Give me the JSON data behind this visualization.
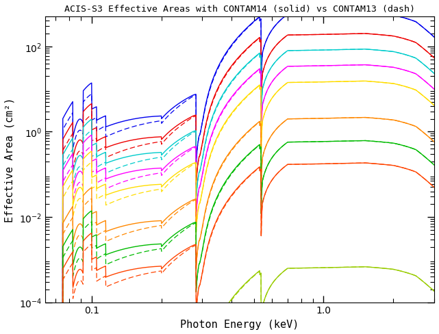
{
  "title": "ACIS-S3 Effective Areas with CONTAM14 (solid) vs CONTAM13 (dash)",
  "xlabel": "Photon Energy (keV)",
  "ylabel": "Effective Area (cm²)",
  "xlim": [
    0.063,
    3.0
  ],
  "ylim": [
    0.0001,
    500.0
  ],
  "colors": [
    "#0000ee",
    "#ee0000",
    "#00cccc",
    "#ff00ff",
    "#ffdd00",
    "#ff8800",
    "#00bb00",
    "#ff4400",
    "#99cc00"
  ],
  "scales": [
    200,
    65,
    28,
    12,
    5.0,
    0.7,
    0.2,
    0.06,
    0.00022
  ],
  "contam13_soft": 0.7,
  "background": "#ffffff"
}
